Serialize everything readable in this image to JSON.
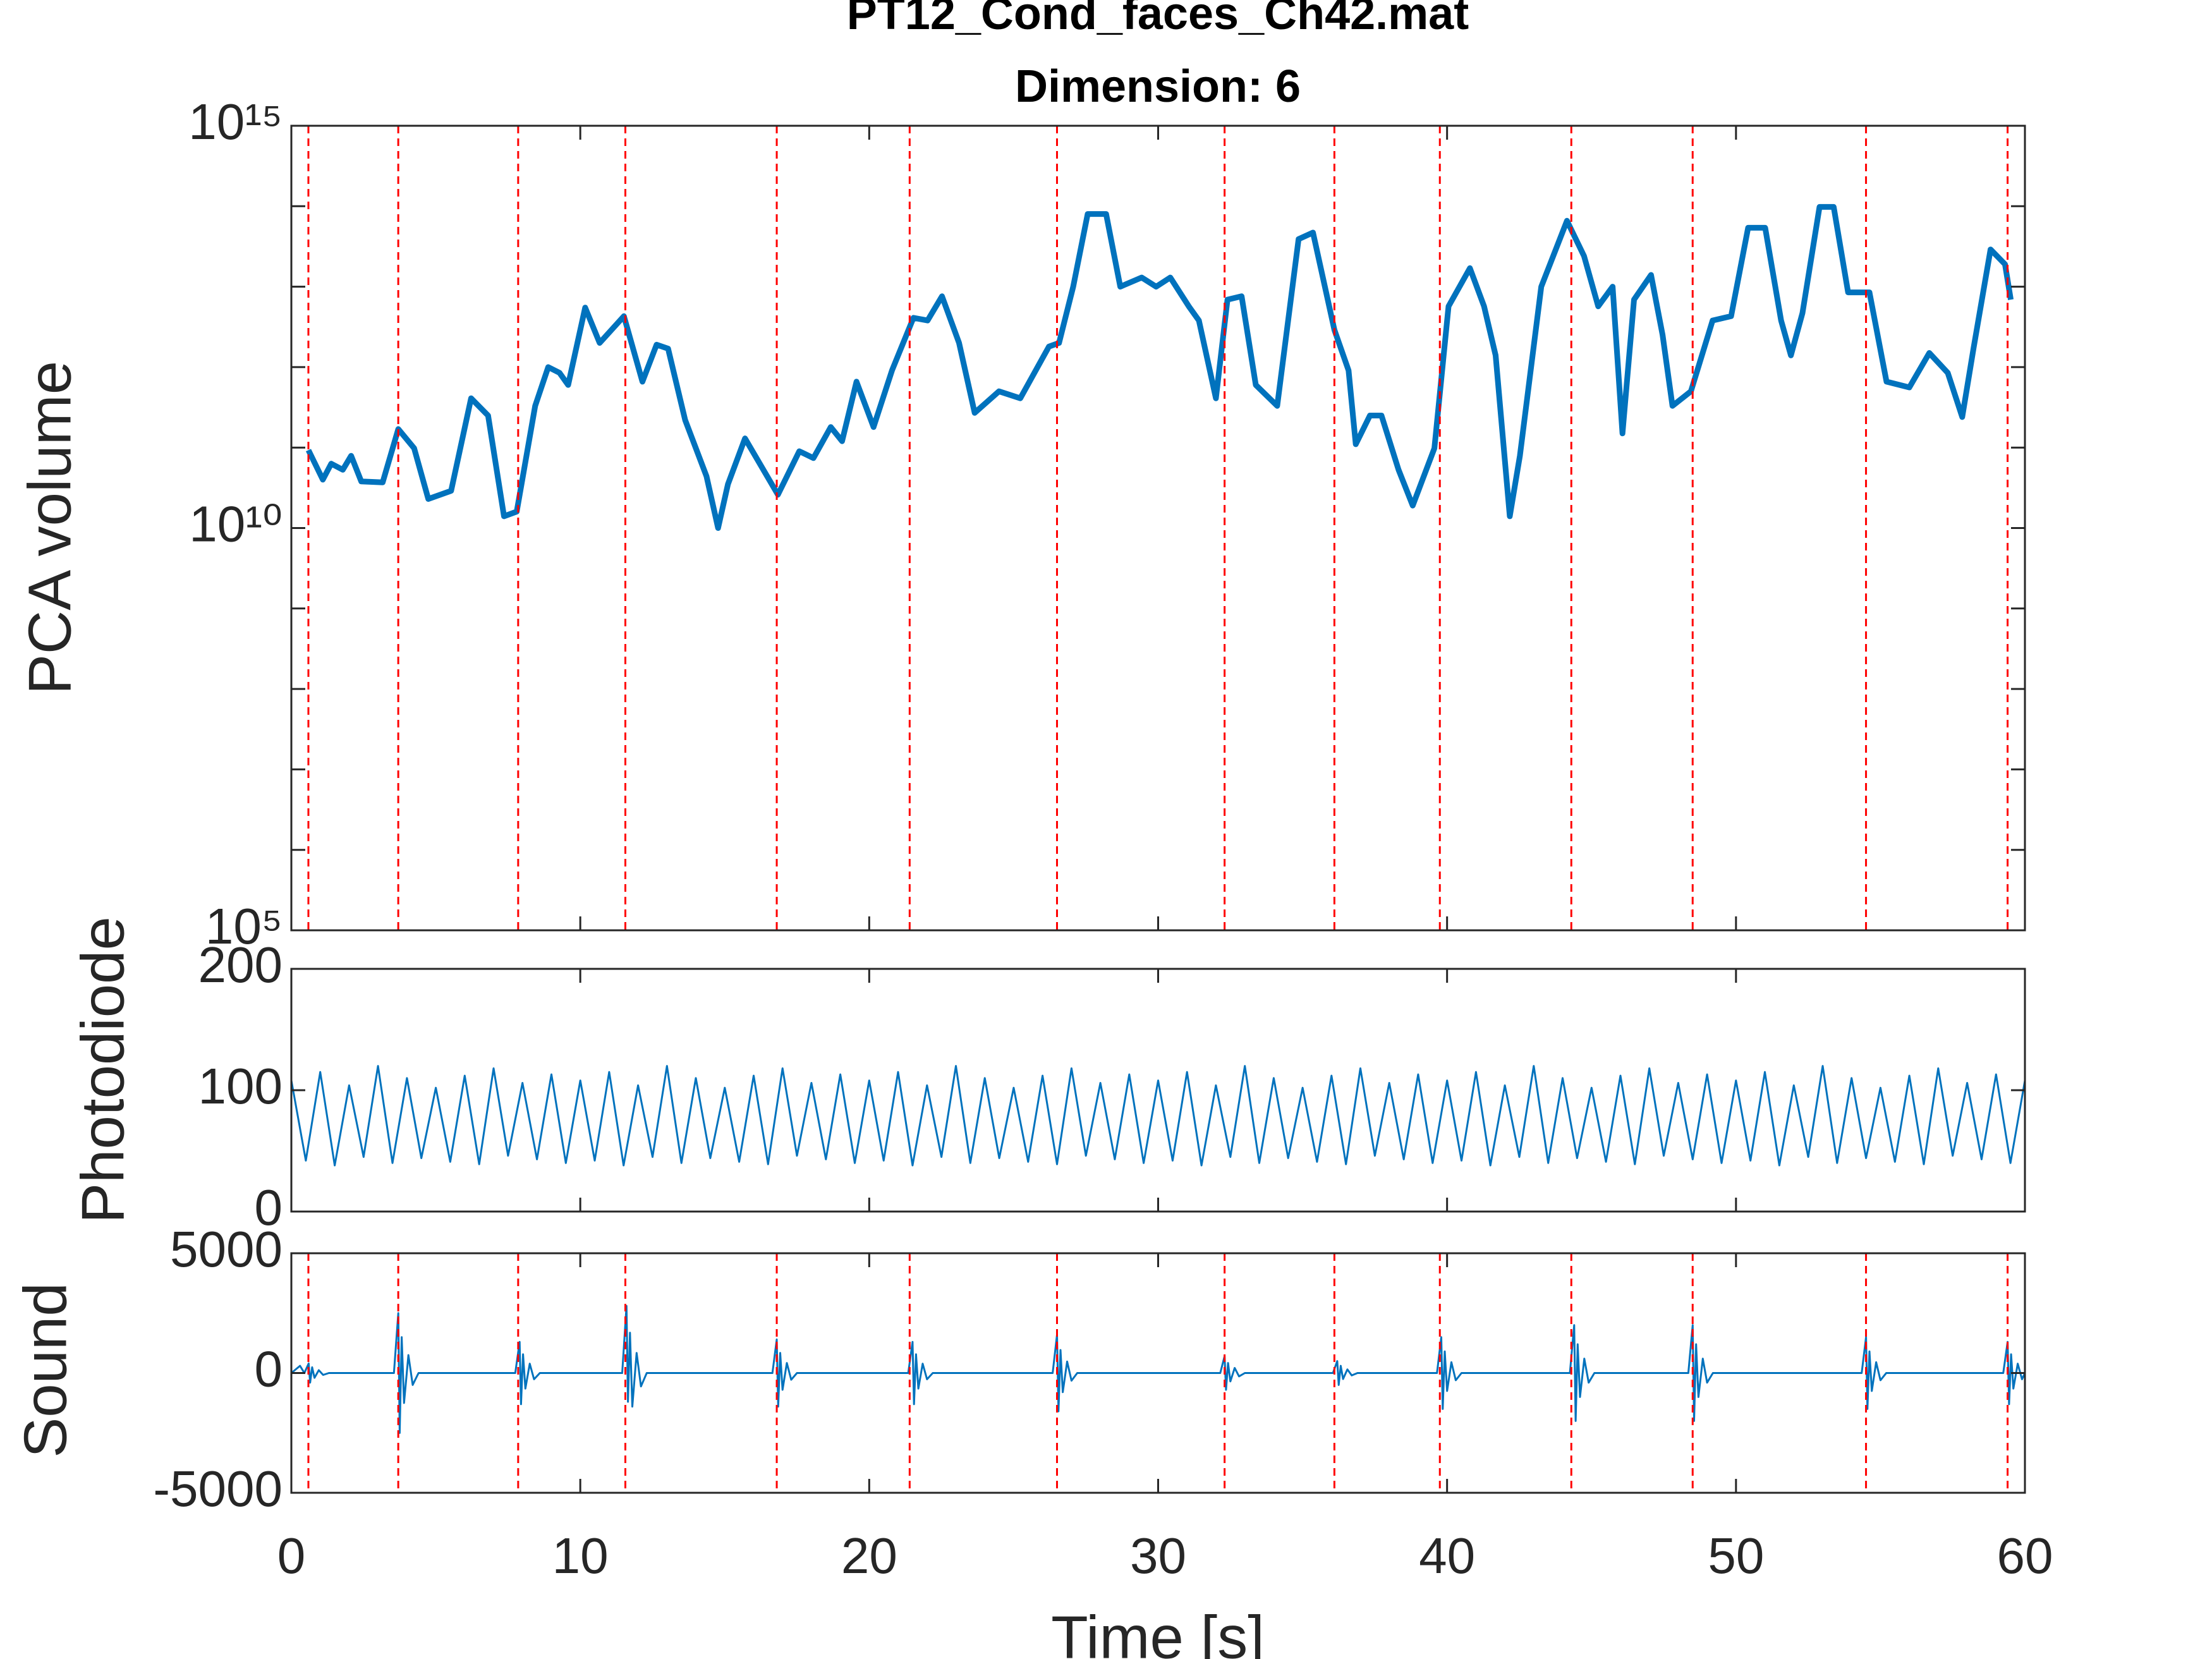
{
  "chart_data": [
    {
      "type": "line",
      "title": "PT12_Cond_faces_Ch42.mat",
      "subtitle": "Dimension: 6",
      "ylabel": "PCA volume",
      "xlim": [
        0,
        60
      ],
      "ylim": [
        100000,
        1000000000000000
      ],
      "log_y": true,
      "yticks": [
        {
          "value": 100000,
          "label": "10⁵"
        },
        {
          "value": 10000000000,
          "label": "10¹⁰"
        },
        {
          "value": 1000000000000000,
          "label": "10¹⁵"
        }
      ],
      "yminor_ticks": [
        1000000,
        10000000,
        100000000,
        1000000000,
        100000000000,
        1000000000000,
        10000000000000,
        100000000000000
      ],
      "vlines": [
        0.59,
        3.7,
        7.85,
        11.56,
        16.8,
        21.4,
        26.5,
        32.3,
        36.1,
        39.75,
        44.3,
        48.5,
        54.5,
        59.4
      ],
      "vline_color": "#ff0000",
      "series": [
        {
          "color": "#0072bd",
          "x": [
            0.59,
            1.09,
            1.38,
            1.78,
            2.07,
            2.42,
            3.16,
            3.7,
            4.25,
            4.74,
            5.53,
            6.22,
            6.81,
            7.36,
            7.8,
            8.44,
            8.89,
            9.28,
            9.58,
            10.17,
            10.67,
            11.51,
            12.15,
            12.64,
            13.04,
            13.63,
            14.37,
            14.77,
            15.11,
            15.7,
            16.84,
            17.58,
            18.07,
            18.67,
            19.06,
            19.56,
            20.15,
            20.79,
            21.53,
            22.02,
            22.52,
            23.11,
            23.65,
            24.49,
            25.23,
            26.22,
            26.57,
            27.06,
            27.56,
            28.2,
            28.69,
            29.43,
            29.93,
            30.42,
            31.06,
            31.41,
            32.0,
            32.4,
            32.89,
            33.38,
            34.12,
            34.86,
            35.36,
            36.1,
            36.59,
            36.84,
            37.33,
            37.73,
            38.32,
            38.81,
            39.56,
            40.05,
            40.79,
            41.28,
            41.68,
            42.17,
            42.52,
            43.26,
            44.15,
            44.74,
            45.23,
            45.73,
            46.07,
            46.47,
            47.06,
            47.46,
            47.8,
            48.44,
            49.19,
            49.83,
            50.42,
            51.01,
            51.56,
            51.9,
            52.3,
            52.89,
            53.38,
            53.88,
            54.62,
            55.21,
            56.0,
            56.69,
            57.33,
            57.83,
            58.22,
            58.81,
            59.31,
            59.51
          ],
          "values": [
            93000000000.0,
            40000000000.0,
            63000000000.0,
            53000000000.0,
            79000000000.0,
            38000000000.0,
            37000000000.0,
            170000000000.0,
            98000000000.0,
            23000000000.0,
            29000000000.0,
            410000000000.0,
            250000000000.0,
            14000000000.0,
            16000000000.0,
            330000000000.0,
            1000000000000.0,
            850000000000.0,
            600000000000.0,
            5500000000000.0,
            2000000000000.0,
            4300000000000.0,
            660000000000.0,
            1900000000000.0,
            1700000000000.0,
            220000000000.0,
            44000000000.0,
            10000000000.0,
            35000000000.0,
            130000000000.0,
            26000000000.0,
            90000000000.0,
            74000000000.0,
            180000000000.0,
            120000000000.0,
            660000000000.0,
            180000000000.0,
            910000000000.0,
            4100000000000.0,
            3800000000000.0,
            7600000000000.0,
            2000000000000.0,
            270000000000.0,
            500000000000.0,
            410000000000.0,
            1800000000000.0,
            2000000000000.0,
            10000000000000.0,
            80000000000000.0,
            80000000000000.0,
            10000000000000.0,
            13000000000000.0,
            10000000000000.0,
            13000000000000.0,
            5700000000000.0,
            3800000000000.0,
            410000000000.0,
            6900000000000.0,
            7600000000000.0,
            600000000000.0,
            330000000000.0,
            39000000000000.0,
            47000000000000.0,
            2900000000000.0,
            910000000000.0,
            110000000000.0,
            250000000000.0,
            250000000000.0,
            53000000000.0,
            19000000000.0,
            98000000000.0,
            5700000000000.0,
            17000000000000.0,
            5700000000000.0,
            1400000000000.0,
            14000000000.0,
            79000000000.0,
            10000000000000.0,
            66000000000000.0,
            24000000000000.0,
            5700000000000.0,
            10000000000000.0,
            150000000000.0,
            6900000000000.0,
            14000000000000.0,
            2500000000000.0,
            330000000000.0,
            500000000000.0,
            3800000000000.0,
            4300000000000.0,
            54000000000000.0,
            54000000000000.0,
            3800000000000.0,
            1400000000000.0,
            4700000000000.0,
            98000000000000.0,
            98000000000000.0,
            8500000000000.0,
            8500000000000.0,
            660000000000.0,
            560000000000.0,
            1500000000000.0,
            850000000000.0,
            240000000000.0,
            1700000000000.0,
            29000000000000.0,
            19000000000000.0,
            6900000000000.0
          ]
        }
      ]
    },
    {
      "type": "line",
      "ylabel": "Photodiode",
      "xlim": [
        0,
        60
      ],
      "ylim": [
        0,
        200
      ],
      "yticks": [
        0,
        100,
        200
      ],
      "series": [
        {
          "color": "#0072bd",
          "x": [
            0,
            0.5,
            1,
            1.5,
            2,
            2.5,
            3,
            3.5,
            4,
            4.5,
            5,
            5.5,
            6,
            6.5,
            7,
            7.5,
            8,
            8.5,
            9,
            9.5,
            10,
            10.5,
            11,
            11.5,
            12,
            12.5,
            13,
            13.5,
            14,
            14.5,
            15,
            15.5,
            16,
            16.5,
            17,
            17.5,
            18,
            18.5,
            19,
            19.5,
            20,
            20.5,
            21,
            21.5,
            22,
            22.5,
            23,
            23.5,
            24,
            24.5,
            25,
            25.5,
            26,
            26.5,
            27,
            27.5,
            28,
            28.5,
            29,
            29.5,
            30,
            30.5,
            31,
            31.5,
            32,
            32.5,
            33,
            33.5,
            34,
            34.5,
            35,
            35.5,
            36,
            36.5,
            37,
            37.5,
            38,
            38.5,
            39,
            39.5,
            40,
            40.5,
            41,
            41.5,
            42,
            42.5,
            43,
            43.5,
            44,
            44.5,
            45,
            45.5,
            46,
            46.5,
            47,
            47.5,
            48,
            48.5,
            49,
            49.5,
            50,
            50.5,
            51,
            51.5,
            52,
            52.5,
            53,
            53.5,
            54,
            54.5,
            55,
            55.5,
            56,
            56.5,
            57,
            57.5,
            58,
            58.5,
            59,
            59.5,
            60
          ],
          "values": [
            108,
            42,
            115,
            38,
            104,
            45,
            120,
            40,
            110,
            44,
            102,
            41,
            112,
            39,
            118,
            46,
            106,
            43,
            113,
            40,
            108,
            42,
            115,
            38,
            104,
            45,
            120,
            40,
            110,
            44,
            102,
            41,
            112,
            39,
            118,
            46,
            106,
            43,
            113,
            40,
            108,
            42,
            115,
            38,
            104,
            45,
            120,
            40,
            110,
            44,
            102,
            41,
            112,
            39,
            118,
            46,
            106,
            43,
            113,
            40,
            108,
            42,
            115,
            38,
            104,
            45,
            120,
            40,
            110,
            44,
            102,
            41,
            112,
            39,
            118,
            46,
            106,
            43,
            113,
            40,
            108,
            42,
            115,
            38,
            104,
            45,
            120,
            40,
            110,
            44,
            102,
            41,
            112,
            39,
            118,
            46,
            106,
            43,
            113,
            40,
            108,
            42,
            115,
            38,
            104,
            45,
            120,
            40,
            110,
            44,
            102,
            41,
            112,
            39,
            118,
            46,
            106,
            43,
            113,
            40,
            108
          ]
        }
      ]
    },
    {
      "type": "line",
      "ylabel": "Sound",
      "xlabel": "Time [s]",
      "xlim": [
        0,
        60
      ],
      "ylim": [
        -5000,
        5000
      ],
      "yticks": [
        -5000,
        0,
        5000
      ],
      "xticks": [
        0,
        10,
        20,
        30,
        40,
        50,
        60
      ],
      "series": [
        {
          "color": "#0072bd",
          "x": [
            0,
            0.3,
            0.45,
            0.6,
            0.65,
            0.72,
            0.8,
            0.95,
            1.1,
            1.3,
            3.55,
            3.7,
            3.75,
            3.82,
            3.9,
            4.05,
            4.2,
            4.4,
            7.75,
            7.9,
            7.95,
            8.02,
            8.1,
            8.25,
            8.4,
            8.6,
            11.45,
            11.6,
            11.65,
            11.72,
            11.8,
            11.95,
            12.1,
            12.3,
            16.65,
            16.8,
            16.85,
            16.92,
            17.0,
            17.15,
            17.3,
            17.5,
            21.35,
            21.5,
            21.55,
            21.62,
            21.7,
            21.85,
            22.0,
            22.2,
            26.35,
            26.5,
            26.55,
            26.62,
            26.7,
            26.85,
            27.0,
            27.2,
            32.15,
            32.3,
            32.35,
            32.42,
            32.5,
            32.65,
            32.8,
            33.0,
            36.05,
            36.2,
            36.25,
            36.32,
            36.4,
            36.55,
            36.7,
            36.9,
            39.65,
            39.8,
            39.85,
            39.92,
            40.0,
            40.15,
            40.3,
            40.5,
            44.25,
            44.4,
            44.45,
            44.52,
            44.6,
            44.75,
            44.9,
            45.1,
            48.35,
            48.5,
            48.55,
            48.62,
            48.7,
            48.85,
            49.0,
            49.2,
            54.35,
            54.5,
            54.55,
            54.62,
            54.7,
            54.85,
            55.0,
            55.2,
            59.25,
            59.4,
            59.45,
            59.52,
            59.6,
            59.75,
            59.9,
            60
          ],
          "values": [
            0,
            300,
            0,
            400,
            -400,
            240,
            -200,
            120,
            -80,
            0,
            0,
            2500,
            -2500,
            1500,
            -1250,
            750,
            -500,
            0,
            0,
            1300,
            -1300,
            780,
            -650,
            390,
            -260,
            0,
            0,
            2800,
            -1200,
            1680,
            -1400,
            840,
            -560,
            0,
            0,
            1400,
            -1400,
            840,
            -700,
            420,
            -280,
            0,
            0,
            1300,
            -1300,
            780,
            -650,
            390,
            -260,
            0,
            0,
            1600,
            -1600,
            960,
            -800,
            480,
            -320,
            0,
            0,
            700,
            -700,
            420,
            -350,
            210,
            -140,
            0,
            0,
            500,
            -500,
            300,
            -250,
            150,
            -100,
            0,
            0,
            1500,
            -1500,
            900,
            -750,
            450,
            -300,
            0,
            0,
            2000,
            -2000,
            1200,
            -1000,
            600,
            -400,
            0,
            0,
            2000,
            -2000,
            1200,
            -1000,
            600,
            -400,
            0,
            0,
            1500,
            -1500,
            900,
            -750,
            450,
            -300,
            0,
            0,
            1300,
            -1300,
            780,
            -650,
            390,
            -260,
            0
          ]
        }
      ]
    }
  ]
}
